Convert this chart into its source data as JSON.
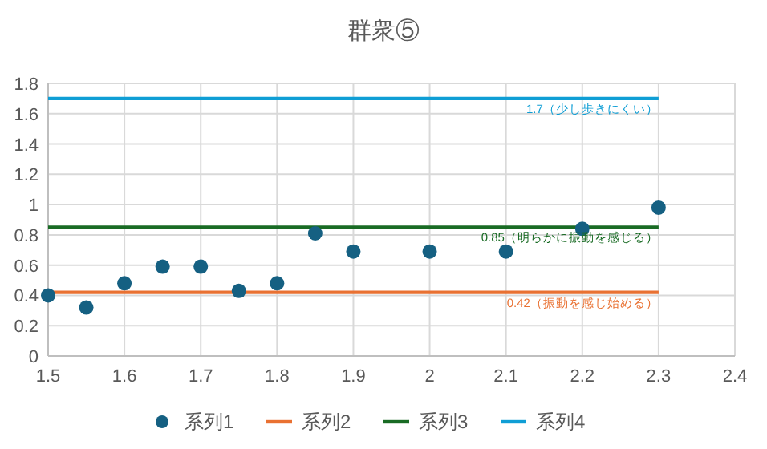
{
  "chart_data": {
    "type": "scatter",
    "title": "群衆⑤",
    "xlim": [
      1.5,
      2.4
    ],
    "xticks": [
      1.5,
      1.6,
      1.7,
      1.8,
      1.9,
      2,
      2.1,
      2.2,
      2.3,
      2.4
    ],
    "ylim": [
      0,
      1.8
    ],
    "yticks": [
      0,
      0.2,
      0.4,
      0.6,
      0.8,
      1,
      1.2,
      1.4,
      1.6,
      1.8
    ],
    "grid": true,
    "legend": "bottom",
    "series": [
      {
        "name": "系列1",
        "type": "scatter",
        "marker": "circle",
        "color": "#156082",
        "x": [
          1.5,
          1.55,
          1.6,
          1.65,
          1.7,
          1.75,
          1.8,
          1.85,
          1.9,
          2.0,
          2.1,
          2.2,
          2.3
        ],
        "values": [
          0.4,
          0.32,
          0.48,
          0.59,
          0.59,
          0.43,
          0.48,
          0.81,
          0.69,
          0.69,
          0.69,
          0.84,
          0.98
        ]
      },
      {
        "name": "系列2",
        "type": "line",
        "marker": "none",
        "color": "#e97132",
        "x": [
          1.5,
          2.3
        ],
        "values": [
          0.42,
          0.42
        ],
        "value_labels": [
          null,
          "0.42（振動を感じ始める）"
        ]
      },
      {
        "name": "系列3",
        "type": "line",
        "marker": "none",
        "color": "#196b24",
        "x": [
          1.5,
          2.3
        ],
        "values": [
          0.85,
          0.85
        ],
        "value_labels": [
          null,
          "0.85（明らかに振動を感じる）"
        ]
      },
      {
        "name": "系列4",
        "type": "line",
        "marker": "none",
        "color": "#0f9ed5",
        "x": [
          1.5,
          2.3
        ],
        "values": [
          1.7,
          1.7
        ],
        "value_labels": [
          null,
          "1.7（少し歩きにくい）"
        ]
      }
    ]
  }
}
